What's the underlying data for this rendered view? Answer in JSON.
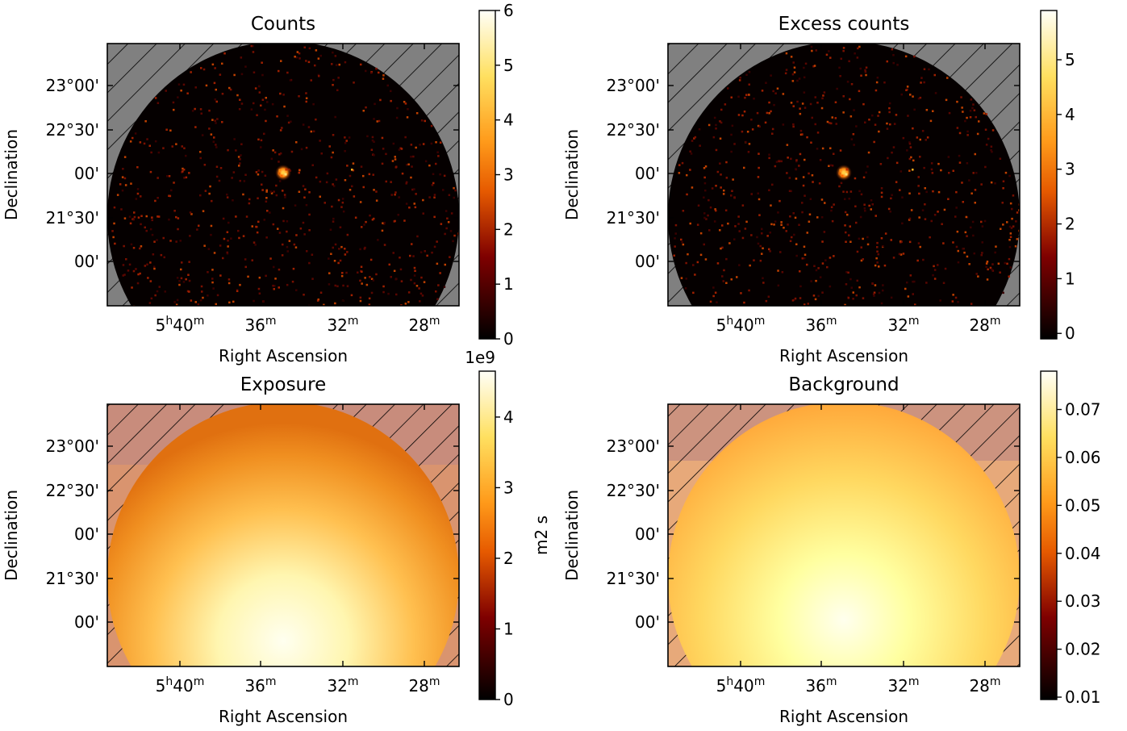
{
  "chart_data": [
    {
      "type": "heatmap",
      "title": "Counts",
      "xlabel": "Right Ascension",
      "ylabel": "Declination",
      "x_ticks": [
        "5h40m",
        "36m",
        "32m",
        "28m"
      ],
      "y_ticks": [
        "23°00'",
        "22°30'",
        "00'",
        "21°30'",
        "00'"
      ],
      "colorbar": {
        "min": 0,
        "max": 6,
        "ticks": [
          "0",
          "1",
          "2",
          "3",
          "4",
          "5",
          "6"
        ],
        "label": "",
        "offset_text": ""
      },
      "colormap": "afmhot",
      "description_values": {
        "source_peak": 6
      }
    },
    {
      "type": "heatmap",
      "title": "Excess counts",
      "xlabel": "Right Ascension",
      "ylabel": "Declination",
      "x_ticks": [
        "5h40m",
        "36m",
        "32m",
        "28m"
      ],
      "y_ticks": [
        "23°00'",
        "22°30'",
        "00'",
        "21°30'",
        "00'"
      ],
      "colorbar": {
        "min": -0.1,
        "max": 5.9,
        "ticks": [
          "0",
          "1",
          "2",
          "3",
          "4",
          "5"
        ],
        "label": "",
        "offset_text": ""
      },
      "colormap": "afmhot"
    },
    {
      "type": "heatmap",
      "title": "Exposure",
      "xlabel": "Right Ascension",
      "ylabel": "Declination",
      "x_ticks": [
        "5h40m",
        "36m",
        "32m",
        "28m"
      ],
      "y_ticks": [
        "23°00'",
        "22°30'",
        "00'",
        "21°30'",
        "00'"
      ],
      "colorbar": {
        "min": 0,
        "max": 4.65,
        "ticks": [
          "0",
          "1",
          "2",
          "3",
          "4"
        ],
        "label": "m2 s",
        "offset_text": "1e9"
      },
      "colormap": "afmhot"
    },
    {
      "type": "heatmap",
      "title": "Background",
      "xlabel": "Right Ascension",
      "ylabel": "Declination",
      "x_ticks": [
        "5h40m",
        "36m",
        "32m",
        "28m"
      ],
      "y_ticks": [
        "23°00'",
        "22°30'",
        "00'",
        "21°30'",
        "00'"
      ],
      "colorbar": {
        "min": 0.0095,
        "max": 0.078,
        "ticks": [
          "0.01",
          "0.02",
          "0.03",
          "0.04",
          "0.05",
          "0.06",
          "0.07"
        ],
        "label": "",
        "offset_text": ""
      },
      "colormap": "afmhot"
    }
  ],
  "colors": {
    "masked_fill": "#808080",
    "hatch": "#000000",
    "exposure_edge": "#e07a1a",
    "background_edge": "#f2a030"
  }
}
